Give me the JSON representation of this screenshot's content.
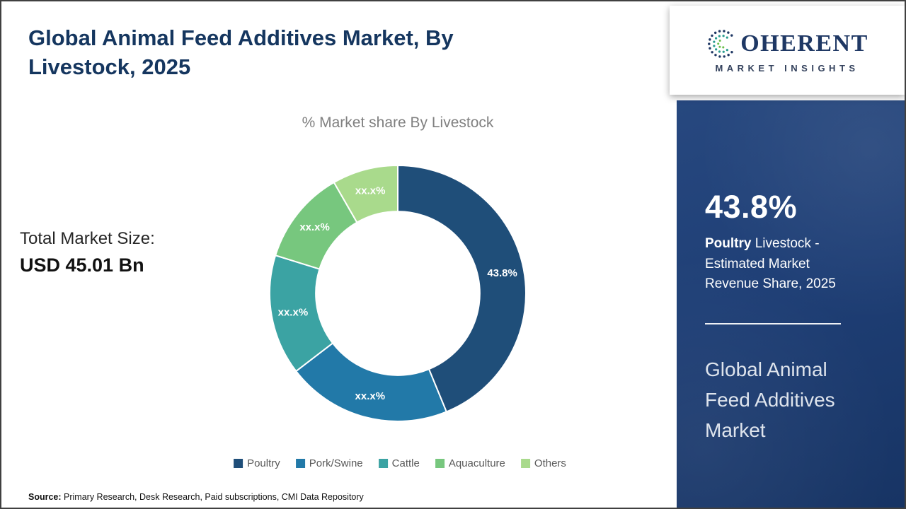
{
  "page": {
    "title": "Global Animal Feed Additives Market, By Livestock, 2025",
    "source_label": "Source:",
    "source_text": " Primary Research, Desk Research, Paid subscriptions, CMI Data Repository"
  },
  "left": {
    "total_market_label": "Total Market Size:",
    "total_market_value": "USD 45.01 Bn"
  },
  "chart_data": {
    "type": "pie",
    "donut": true,
    "title": "% Market share By Livestock",
    "categories": [
      "Poultry",
      "Pork/Swine",
      "Cattle",
      "Aquaculture",
      "Others"
    ],
    "values": [
      43.8,
      20.8,
      15.2,
      11.9,
      8.3
    ],
    "labels": [
      "43.8%",
      "xx.x%",
      "xx.x%",
      "xx.x%",
      "xx.x%"
    ],
    "colors": [
      "#1f4e79",
      "#2279a8",
      "#3ba3a3",
      "#77c77e",
      "#a9da8c"
    ],
    "start_angle_deg": -90,
    "inner_radius_ratio": 0.64,
    "legend_position": "bottom"
  },
  "sidebar": {
    "logo": {
      "brand_initial": "C",
      "brand_rest": "OHERENT",
      "subbrand": "MARKET INSIGHTS"
    },
    "stat_value": "43.8%",
    "stat_bold": "Poultry",
    "stat_rest": " Livestock - Estimated Market Revenue Share, 2025",
    "footer_title": "Global Animal Feed Additives Market"
  }
}
